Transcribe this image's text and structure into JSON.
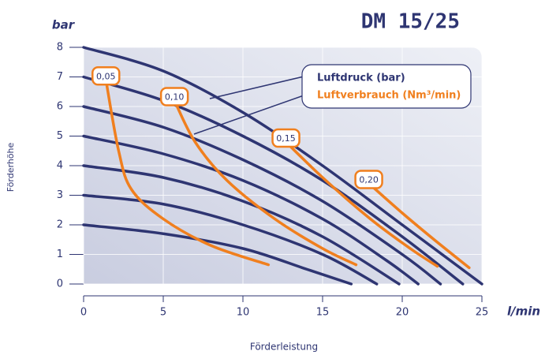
{
  "chart_data": {
    "type": "line",
    "title": "DM 15/25",
    "y_unit": "bar",
    "x_unit": "l/min",
    "xlabel": "Förderleistung",
    "ylabel": "Förderhöhe",
    "legend": [
      "Luftdruck (bar)",
      "Luftverbrauch (Nm³/min)"
    ],
    "legend_colors": [
      "#2e3572",
      "#f07f1e"
    ],
    "xlim": [
      0,
      25
    ],
    "ylim": [
      0,
      8
    ],
    "xticks": [
      0,
      5,
      10,
      15,
      20,
      25
    ],
    "yticks": [
      0,
      1,
      2,
      3,
      4,
      5,
      6,
      7,
      8
    ],
    "grid": true,
    "series": [
      {
        "color": "#2e3572",
        "x": [
          0,
          5,
          10,
          15,
          20,
          25
        ],
        "values": [
          8,
          7.2,
          5.8,
          4.0,
          2.0,
          0
        ]
      },
      {
        "color": "#2e3572",
        "x": [
          0,
          5,
          10,
          15,
          20,
          23.8
        ],
        "values": [
          7,
          6.2,
          5.0,
          3.5,
          1.6,
          0
        ]
      },
      {
        "color": "#2e3572",
        "x": [
          0,
          5,
          10,
          15,
          20,
          22.4
        ],
        "values": [
          6,
          5.3,
          4.2,
          2.8,
          1.0,
          0
        ]
      },
      {
        "color": "#2e3572",
        "x": [
          0,
          5,
          10,
          15,
          19,
          21
        ],
        "values": [
          5,
          4.4,
          3.5,
          2.2,
          0.8,
          0
        ]
      },
      {
        "color": "#2e3572",
        "x": [
          0,
          5,
          10,
          15,
          19.8
        ],
        "values": [
          4,
          3.6,
          2.8,
          1.6,
          0
        ]
      },
      {
        "color": "#2e3572",
        "x": [
          0,
          5,
          10,
          15,
          18.4
        ],
        "values": [
          3,
          2.7,
          2.0,
          1.0,
          0
        ]
      },
      {
        "color": "#2e3572",
        "x": [
          0,
          5,
          10,
          14,
          16.8
        ],
        "values": [
          2,
          1.7,
          1.2,
          0.5,
          0
        ]
      },
      {
        "name": "0,05",
        "color": "#f07f1e",
        "x": [
          1.4,
          2.2,
          3,
          5,
          8,
          11.6
        ],
        "values": [
          6.9,
          4.5,
          3.2,
          2.2,
          1.3,
          0.65
        ]
      },
      {
        "name": "0,10",
        "color": "#f07f1e",
        "x": [
          5.7,
          7,
          9,
          12,
          15,
          17.1
        ],
        "values": [
          6.2,
          4.8,
          3.5,
          2.2,
          1.2,
          0.65
        ]
      },
      {
        "name": "0,15",
        "color": "#f07f1e",
        "x": [
          12.7,
          15,
          18,
          20.5,
          22.2
        ],
        "values": [
          4.8,
          3.6,
          2.2,
          1.2,
          0.6
        ]
      },
      {
        "name": "0,20",
        "color": "#f07f1e",
        "x": [
          17.9,
          20,
          22,
          24.2
        ],
        "values": [
          3.4,
          2.4,
          1.5,
          0.55
        ]
      }
    ]
  }
}
